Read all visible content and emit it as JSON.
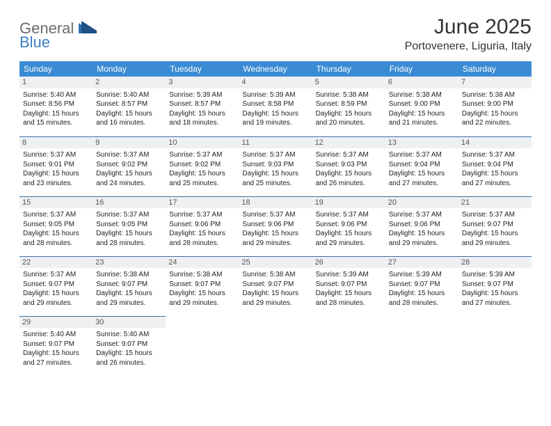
{
  "brand": {
    "word1": "General",
    "word2": "Blue"
  },
  "title": "June 2025",
  "location": "Portovenere, Liguria, Italy",
  "colors": {
    "header_bg": "#3b8bd4",
    "header_text": "#ffffff",
    "row_divider": "#3b6fa0",
    "daynum_bg": "#eef0f2",
    "logo_gray": "#6b6b6b",
    "logo_blue": "#3b7fc4"
  },
  "day_headers": [
    "Sunday",
    "Monday",
    "Tuesday",
    "Wednesday",
    "Thursday",
    "Friday",
    "Saturday"
  ],
  "weeks": [
    [
      {
        "n": "1",
        "sr": "5:40 AM",
        "ss": "8:56 PM",
        "dl": "15 hours and 15 minutes."
      },
      {
        "n": "2",
        "sr": "5:40 AM",
        "ss": "8:57 PM",
        "dl": "15 hours and 16 minutes."
      },
      {
        "n": "3",
        "sr": "5:39 AM",
        "ss": "8:57 PM",
        "dl": "15 hours and 18 minutes."
      },
      {
        "n": "4",
        "sr": "5:39 AM",
        "ss": "8:58 PM",
        "dl": "15 hours and 19 minutes."
      },
      {
        "n": "5",
        "sr": "5:38 AM",
        "ss": "8:59 PM",
        "dl": "15 hours and 20 minutes."
      },
      {
        "n": "6",
        "sr": "5:38 AM",
        "ss": "9:00 PM",
        "dl": "15 hours and 21 minutes."
      },
      {
        "n": "7",
        "sr": "5:38 AM",
        "ss": "9:00 PM",
        "dl": "15 hours and 22 minutes."
      }
    ],
    [
      {
        "n": "8",
        "sr": "5:37 AM",
        "ss": "9:01 PM",
        "dl": "15 hours and 23 minutes."
      },
      {
        "n": "9",
        "sr": "5:37 AM",
        "ss": "9:02 PM",
        "dl": "15 hours and 24 minutes."
      },
      {
        "n": "10",
        "sr": "5:37 AM",
        "ss": "9:02 PM",
        "dl": "15 hours and 25 minutes."
      },
      {
        "n": "11",
        "sr": "5:37 AM",
        "ss": "9:03 PM",
        "dl": "15 hours and 25 minutes."
      },
      {
        "n": "12",
        "sr": "5:37 AM",
        "ss": "9:03 PM",
        "dl": "15 hours and 26 minutes."
      },
      {
        "n": "13",
        "sr": "5:37 AM",
        "ss": "9:04 PM",
        "dl": "15 hours and 27 minutes."
      },
      {
        "n": "14",
        "sr": "5:37 AM",
        "ss": "9:04 PM",
        "dl": "15 hours and 27 minutes."
      }
    ],
    [
      {
        "n": "15",
        "sr": "5:37 AM",
        "ss": "9:05 PM",
        "dl": "15 hours and 28 minutes."
      },
      {
        "n": "16",
        "sr": "5:37 AM",
        "ss": "9:05 PM",
        "dl": "15 hours and 28 minutes."
      },
      {
        "n": "17",
        "sr": "5:37 AM",
        "ss": "9:06 PM",
        "dl": "15 hours and 28 minutes."
      },
      {
        "n": "18",
        "sr": "5:37 AM",
        "ss": "9:06 PM",
        "dl": "15 hours and 29 minutes."
      },
      {
        "n": "19",
        "sr": "5:37 AM",
        "ss": "9:06 PM",
        "dl": "15 hours and 29 minutes."
      },
      {
        "n": "20",
        "sr": "5:37 AM",
        "ss": "9:06 PM",
        "dl": "15 hours and 29 minutes."
      },
      {
        "n": "21",
        "sr": "5:37 AM",
        "ss": "9:07 PM",
        "dl": "15 hours and 29 minutes."
      }
    ],
    [
      {
        "n": "22",
        "sr": "5:37 AM",
        "ss": "9:07 PM",
        "dl": "15 hours and 29 minutes."
      },
      {
        "n": "23",
        "sr": "5:38 AM",
        "ss": "9:07 PM",
        "dl": "15 hours and 29 minutes."
      },
      {
        "n": "24",
        "sr": "5:38 AM",
        "ss": "9:07 PM",
        "dl": "15 hours and 29 minutes."
      },
      {
        "n": "25",
        "sr": "5:38 AM",
        "ss": "9:07 PM",
        "dl": "15 hours and 29 minutes."
      },
      {
        "n": "26",
        "sr": "5:39 AM",
        "ss": "9:07 PM",
        "dl": "15 hours and 28 minutes."
      },
      {
        "n": "27",
        "sr": "5:39 AM",
        "ss": "9:07 PM",
        "dl": "15 hours and 28 minutes."
      },
      {
        "n": "28",
        "sr": "5:39 AM",
        "ss": "9:07 PM",
        "dl": "15 hours and 27 minutes."
      }
    ],
    [
      {
        "n": "29",
        "sr": "5:40 AM",
        "ss": "9:07 PM",
        "dl": "15 hours and 27 minutes."
      },
      {
        "n": "30",
        "sr": "5:40 AM",
        "ss": "9:07 PM",
        "dl": "15 hours and 26 minutes."
      },
      null,
      null,
      null,
      null,
      null
    ]
  ],
  "labels": {
    "sunrise": "Sunrise:",
    "sunset": "Sunset:",
    "daylight": "Daylight:"
  }
}
